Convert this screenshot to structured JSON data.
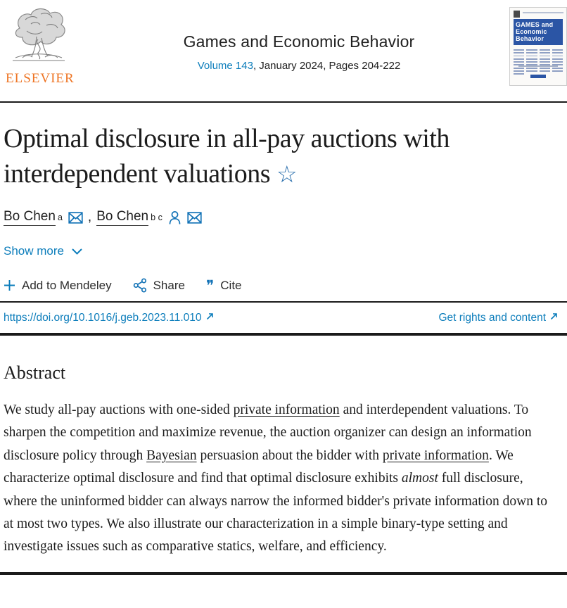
{
  "header": {
    "publisher_logo_label": "ELSEVIER",
    "journal_title": "Games and Economic Behavior",
    "volume_link": "Volume 143",
    "issue_info": ", January 2024, Pages 204-222",
    "cover_title_line1": "GAMES and",
    "cover_title_line2": "Economic",
    "cover_title_line3": "Behavior"
  },
  "article": {
    "title": "Optimal disclosure in all-pay auctions with interdependent valuations",
    "title_note_symbol": "☆",
    "authors": [
      {
        "name": "Bo Chen",
        "sup": "a"
      },
      {
        "name": "Bo Chen",
        "sup": "b c"
      }
    ],
    "author_separator": ",",
    "show_more_label": "Show more",
    "add_to_mendeley_label": "Add to Mendeley",
    "share_label": "Share",
    "cite_label": "Cite",
    "cite_glyph": "❞",
    "doi_link": "https://doi.org/10.1016/j.geb.2023.11.010",
    "rights_link": "Get rights and content"
  },
  "abstract": {
    "heading": "Abstract",
    "segments": [
      {
        "text": "We study all-pay auctions with one-sided ",
        "style": "plain"
      },
      {
        "text": "private information",
        "style": "link"
      },
      {
        "text": " and interdependent valuations. To sharpen the competition and maximize revenue, the auction organizer can design an information disclosure policy through ",
        "style": "plain"
      },
      {
        "text": "Bayesian",
        "style": "link"
      },
      {
        "text": " persuasion about the bidder with ",
        "style": "plain"
      },
      {
        "text": "private information",
        "style": "link"
      },
      {
        "text": ". We characterize optimal disclosure and find that optimal disclosure exhibits ",
        "style": "plain"
      },
      {
        "text": "almost",
        "style": "italic"
      },
      {
        "text": " full disclosure, where the uninformed bidder can always narrow the informed bidder's private information down to at most two types. We also illustrate our characterization in a simple binary-type setting and investigate issues such as comparative statics, welfare, and efficiency.",
        "style": "plain"
      }
    ]
  },
  "colors": {
    "link_blue": "#0c7dbb",
    "icon_blue": "#1272b6",
    "elsevier_orange": "#ee7423",
    "cover_banner_blue": "#2b55a5",
    "text_dark": "#212121",
    "rule_dark": "#1b1b1b"
  }
}
